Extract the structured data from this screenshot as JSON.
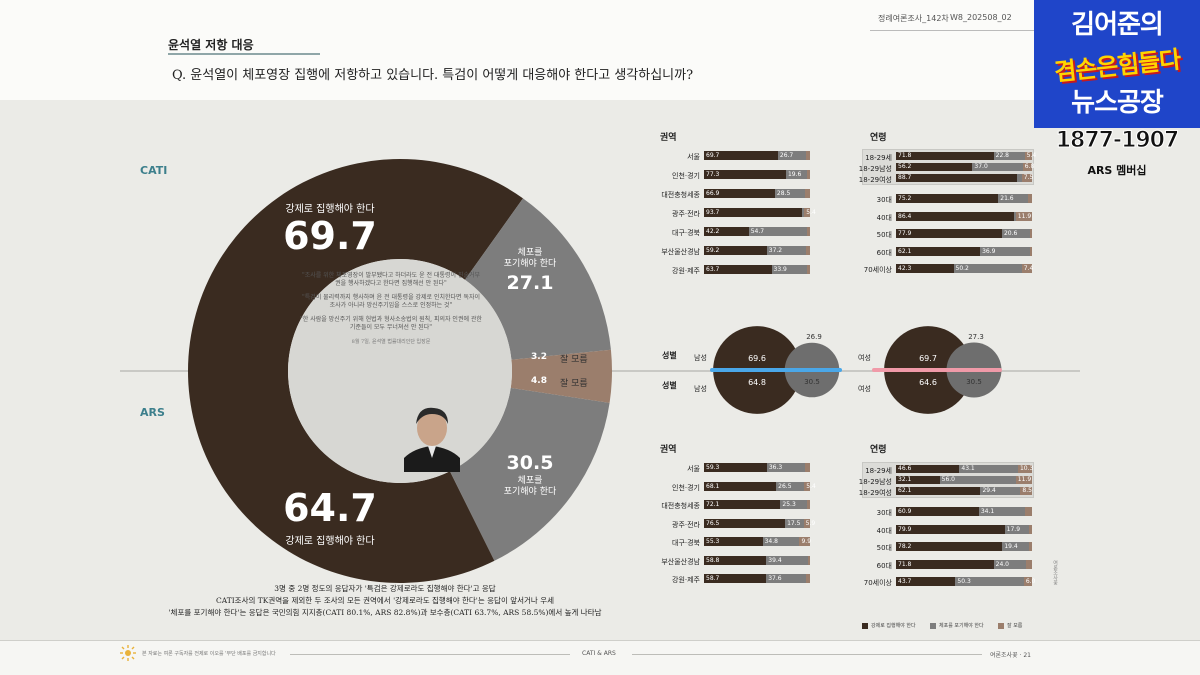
{
  "header": {
    "section_title": "윤석열 저항 대응",
    "question": "Q.  윤석열이 체포영장 집행에 저항하고 있습니다. 특검이 어떻게 대응해야 한다고 생각하십니까?",
    "left": "정례여론조사_142차",
    "right": "W8_202508_02"
  },
  "logo": {
    "line1": "김어준의",
    "line2": "겸손은힘들다",
    "line3": "뉴스공장",
    "phone": "1877-1907",
    "phone_sub": "ARS 멤버십"
  },
  "chart_data": [
    {
      "type": "pie",
      "title": "CATI",
      "slices": [
        {
          "label": "강제로 집행해야 한다",
          "value": 69.7
        },
        {
          "label": "체포를 포기해야 한다",
          "value": 27.1
        },
        {
          "label": "잘 모름",
          "value": 3.2
        }
      ]
    },
    {
      "type": "pie",
      "title": "ARS",
      "slices": [
        {
          "label": "강제로 집행해야 한다",
          "value": 64.7
        },
        {
          "label": "체포를 포기해야 한다",
          "value": 30.5
        },
        {
          "label": "잘 모름",
          "value": 4.8
        }
      ]
    }
  ],
  "donut_labels": {
    "cati_force_label": "강제로 집행해야 한다",
    "cati_force_value": "69.7",
    "cati_give_label1": "체포를",
    "cati_give_label2": "포기해야 한다",
    "cati_give_value": "27.1",
    "cati_dk_value": "3.2",
    "cati_dk_label": "잘 모름",
    "ars_dk_value": "4.8",
    "ars_dk_label": "잘 모름",
    "ars_give_value": "30.5",
    "ars_give_label1": "체포를",
    "ars_give_label2": "포기해야 한다",
    "ars_force_value": "64.7",
    "ars_force_label": "강제로 집행해야 한다",
    "method_top": "CATI",
    "method_bottom": "ARS"
  },
  "quotes": {
    "q1": "\"조사를 위한 체포영장이 발부됐다고 하더라도 윤 전 대통령이 진술거부권을 행사하겠다고 한다면 집행해선 안 된다\"",
    "q2": "\"특검이 물리력까지 행사하며 윤 전 대통령을 강제로 인치한다면 독자이 조사가 아니라 망신주기임을 스스로 인정하는 것\"",
    "q3": "\"한 사람을 망신주기 위해 헌법과 형사소송법의 원칙, 피의자 인권에 관한 기준들이 모두 무너져선 안 된다\"",
    "source": "8월 7일, 윤석열 법률대리인단 입장문"
  },
  "region_cati": {
    "title": "권역",
    "rows": [
      {
        "name": "서울",
        "a": 69.7,
        "b": 26.7,
        "c": 3.6,
        "la": "69.7",
        "lb": "26.7",
        "lc": ""
      },
      {
        "name": "인천·경기",
        "a": 77.3,
        "b": 19.6,
        "c": 3.1,
        "la": "77.3",
        "lb": "19.6",
        "lc": ""
      },
      {
        "name": "대전충청세종",
        "a": 66.9,
        "b": 28.5,
        "c": 4.6,
        "la": "66.9",
        "lb": "28.5",
        "lc": ""
      },
      {
        "name": "광주·전라",
        "a": 93.7,
        "b": 0.9,
        "c": 5.4,
        "la": "93.7",
        "lb": "",
        "lc": "5.4"
      },
      {
        "name": "대구·경북",
        "a": 42.2,
        "b": 54.7,
        "c": 3.1,
        "la": "42.2",
        "lb": "54.7",
        "lc": ""
      },
      {
        "name": "부산울산경남",
        "a": 59.2,
        "b": 37.2,
        "c": 3.6,
        "la": "59.2",
        "lb": "37.2",
        "lc": ""
      },
      {
        "name": "강원·제주",
        "a": 63.7,
        "b": 33.9,
        "c": 2.4,
        "la": "63.7",
        "lb": "33.9",
        "lc": ""
      }
    ]
  },
  "age_cati": {
    "title": "연령",
    "rows": [
      {
        "name": "18-29세",
        "a": 71.8,
        "b": 22.8,
        "c": 5.4,
        "la": "71.8",
        "lb": "22.8",
        "lc": "5.4"
      },
      {
        "name": "18-29남성",
        "a": 56.2,
        "b": 37.0,
        "c": 6.8,
        "la": "56.2",
        "lb": "37.0",
        "lc": "6.8"
      },
      {
        "name": "18-29여성",
        "a": 88.7,
        "b": 3.8,
        "c": 7.5,
        "la": "88.7",
        "lb": "",
        "lc": "7.5"
      },
      {
        "name": "30대",
        "a": 75.2,
        "b": 21.6,
        "c": 3.2,
        "la": "75.2",
        "lb": "21.6",
        "lc": ""
      },
      {
        "name": "40대",
        "a": 86.4,
        "b": 1.7,
        "c": 11.9,
        "la": "86.4",
        "lb": "",
        "lc": "11.9"
      },
      {
        "name": "50대",
        "a": 77.9,
        "b": 20.6,
        "c": 1.5,
        "la": "77.9",
        "lb": "20.6",
        "lc": ""
      },
      {
        "name": "60대",
        "a": 62.1,
        "b": 36.9,
        "c": 1.0,
        "la": "62.1",
        "lb": "36.9",
        "lc": ""
      },
      {
        "name": "70세이상",
        "a": 42.3,
        "b": 50.2,
        "c": 7.4,
        "la": "42.3",
        "lb": "50.2",
        "lc": "7.4"
      }
    ]
  },
  "region_ars": {
    "title": "권역",
    "rows": [
      {
        "name": "서울",
        "a": 59.3,
        "b": 36.3,
        "c": 4.4,
        "la": "59.3",
        "lb": "36.3",
        "lc": ""
      },
      {
        "name": "인천·경기",
        "a": 68.1,
        "b": 26.5,
        "c": 5.4,
        "la": "68.1",
        "lb": "26.5",
        "lc": "5.4"
      },
      {
        "name": "대전충청세종",
        "a": 72.1,
        "b": 25.3,
        "c": 2.6,
        "la": "72.1",
        "lb": "25.3",
        "lc": ""
      },
      {
        "name": "광주·전라",
        "a": 76.5,
        "b": 17.5,
        "c": 5.9,
        "la": "76.5",
        "lb": "17.5",
        "lc": "5.9"
      },
      {
        "name": "대구·경북",
        "a": 55.3,
        "b": 34.8,
        "c": 9.9,
        "la": "55.3",
        "lb": "34.8",
        "lc": "9.9"
      },
      {
        "name": "부산울산경남",
        "a": 58.8,
        "b": 39.4,
        "c": 1.8,
        "la": "58.8",
        "lb": "39.4",
        "lc": ""
      },
      {
        "name": "강원·제주",
        "a": 58.7,
        "b": 37.6,
        "c": 3.7,
        "la": "58.7",
        "lb": "37.6",
        "lc": ""
      }
    ]
  },
  "age_ars": {
    "title": "연령",
    "rows": [
      {
        "name": "18-29세",
        "a": 46.6,
        "b": 43.1,
        "c": 10.3,
        "la": "46.6",
        "lb": "43.1",
        "lc": "10.3"
      },
      {
        "name": "18-29남성",
        "a": 32.1,
        "b": 56.0,
        "c": 11.9,
        "la": "32.1",
        "lb": "56.0",
        "lc": "11.9"
      },
      {
        "name": "18-29여성",
        "a": 62.1,
        "b": 29.4,
        "c": 8.5,
        "la": "62.1",
        "lb": "29.4",
        "lc": "8.5"
      },
      {
        "name": "30대",
        "a": 60.9,
        "b": 34.1,
        "c": 5.0,
        "la": "60.9",
        "lb": "34.1",
        "lc": ""
      },
      {
        "name": "40대",
        "a": 79.9,
        "b": 17.9,
        "c": 2.2,
        "la": "79.9",
        "lb": "17.9",
        "lc": ""
      },
      {
        "name": "50대",
        "a": 78.2,
        "b": 19.4,
        "c": 2.4,
        "la": "78.2",
        "lb": "19.4",
        "lc": ""
      },
      {
        "name": "60대",
        "a": 71.8,
        "b": 24.0,
        "c": 4.2,
        "la": "71.8",
        "lb": "24.0",
        "lc": ""
      },
      {
        "name": "70세이상",
        "a": 43.7,
        "b": 50.3,
        "c": 6.0,
        "la": "43.7",
        "lb": "50.3",
        "lc": "6.0"
      }
    ]
  },
  "gender": {
    "title": "성별",
    "male": "남성",
    "female": "여성",
    "cati_male_force": "69.6",
    "cati_male_give": "26.9",
    "cati_female_force": "69.7",
    "cati_female_give": "27.3",
    "ars_male_force": "64.8",
    "ars_male_give": "30.5",
    "ars_female_force": "64.6",
    "ars_female_give": "30.5"
  },
  "summary": {
    "l1": "3명 중 2명 정도의 응답자가 '특검은 강제로라도 집행해야 한다'고 응답",
    "l2": "CATI조사의 TK권역을 제외한 두 조사의 모든 권역에서 '강제로라도 집행해야 한다'는 응답이 앞서거나 우세",
    "l3": "'체포를 포기해야 한다'는 응답은 국민의힘 지지층(CATI 80.1%, ARS 82.8%)과 보수층(CATI 63.7%, ARS 58.5%)에서 높게 나타남"
  },
  "legend": {
    "a": "강제로 집행해야 한다",
    "b": "체포를 포기해야 한다",
    "c": "잘 모름"
  },
  "footer": {
    "left": "본 자료는 여론 구독자를 전제로 이오를 '무단 배포를 금지합니다",
    "center": "CATI & ARS",
    "right": "여론조사꽃  ·  21",
    "vertical": "여론조사꽃"
  },
  "colors": {
    "force": "#3a2b20",
    "give": "#7d7d7d",
    "dk": "#9b7e6c",
    "center": "#d7d7d3"
  }
}
